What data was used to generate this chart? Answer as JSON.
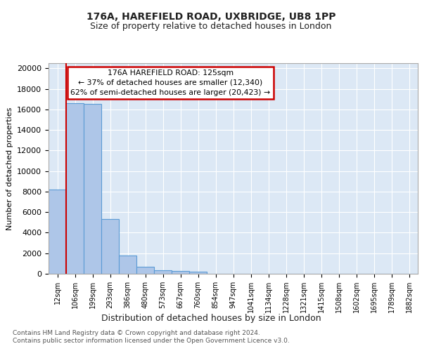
{
  "title1": "176A, HAREFIELD ROAD, UXBRIDGE, UB8 1PP",
  "title2": "Size of property relative to detached houses in London",
  "xlabel": "Distribution of detached houses by size in London",
  "ylabel": "Number of detached properties",
  "bar_labels": [
    "12sqm",
    "106sqm",
    "199sqm",
    "293sqm",
    "386sqm",
    "480sqm",
    "573sqm",
    "667sqm",
    "760sqm",
    "854sqm",
    "947sqm",
    "1041sqm",
    "1134sqm",
    "1228sqm",
    "1321sqm",
    "1415sqm",
    "1508sqm",
    "1602sqm",
    "1695sqm",
    "1789sqm",
    "1882sqm"
  ],
  "bar_values": [
    8200,
    16600,
    16550,
    5300,
    1800,
    700,
    350,
    250,
    200,
    0,
    0,
    0,
    0,
    0,
    0,
    0,
    0,
    0,
    0,
    0,
    0
  ],
  "bar_color": "#aec6e8",
  "bar_edge_color": "#5b9bd5",
  "annotation_title": "176A HAREFIELD ROAD: 125sqm",
  "annotation_line1": "← 37% of detached houses are smaller (12,340)",
  "annotation_line2": "62% of semi-detached houses are larger (20,423) →",
  "annotation_box_color": "#ffffff",
  "annotation_box_edge": "#cc0000",
  "vline_color": "#cc0000",
  "vline_pos": 0.5,
  "ylim": [
    0,
    20500
  ],
  "yticks": [
    0,
    2000,
    4000,
    6000,
    8000,
    10000,
    12000,
    14000,
    16000,
    18000,
    20000
  ],
  "footer1": "Contains HM Land Registry data © Crown copyright and database right 2024.",
  "footer2": "Contains public sector information licensed under the Open Government Licence v3.0.",
  "bg_color": "#ffffff",
  "plot_bg_color": "#dce8f5"
}
